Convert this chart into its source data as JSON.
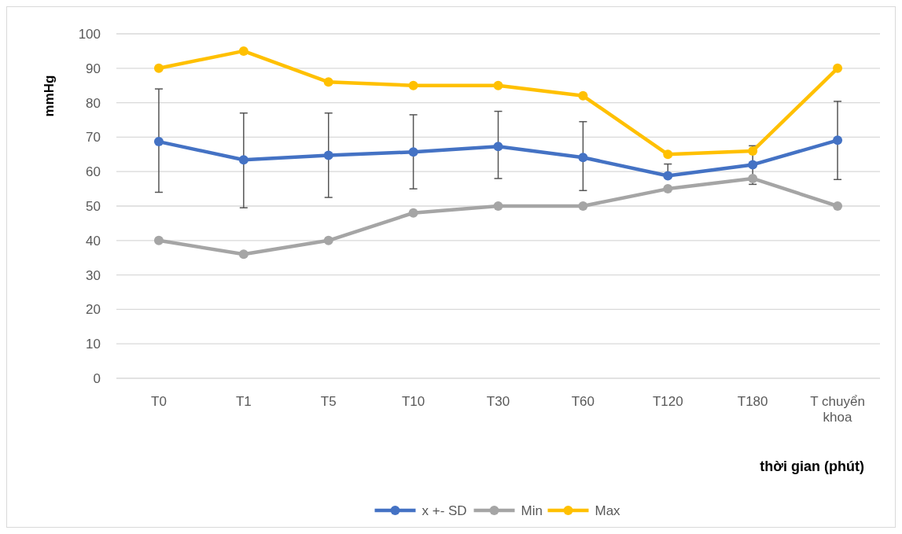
{
  "chart_data": {
    "type": "line",
    "ylabel": "mmHg",
    "xlabel": "thời gian (phút)",
    "categories": [
      "T0",
      "T1",
      "T5",
      "T10",
      "T30",
      "T60",
      "T120",
      "T180",
      "T chuyển khoa"
    ],
    "ylim": [
      0,
      100
    ],
    "yticks": [
      0,
      10,
      20,
      30,
      40,
      50,
      60,
      70,
      80,
      90,
      100
    ],
    "grid": "y",
    "legend": "bottom",
    "marker": "circle",
    "series": [
      {
        "name": "x +- SD",
        "color": "#4472c4",
        "values": [
          68.7,
          63.4,
          64.7,
          65.7,
          67.3,
          64.1,
          58.8,
          62,
          69.1
        ],
        "errors": [
          [
            54,
            84
          ],
          [
            49.5,
            77
          ],
          [
            52.5,
            77
          ],
          [
            55,
            76.5
          ],
          [
            58,
            77.5
          ],
          [
            54.5,
            74.5
          ],
          [
            58.8,
            62.2
          ],
          [
            56.3,
            67.5
          ],
          [
            57.7,
            80.4
          ]
        ]
      },
      {
        "name": "Min",
        "color": "#a5a5a5",
        "values": [
          40,
          36,
          40,
          48,
          50,
          50,
          55,
          58,
          50
        ]
      },
      {
        "name": "Max",
        "color": "#ffc000",
        "values": [
          90,
          95,
          86,
          85,
          85,
          82,
          65,
          66,
          90
        ]
      }
    ]
  }
}
